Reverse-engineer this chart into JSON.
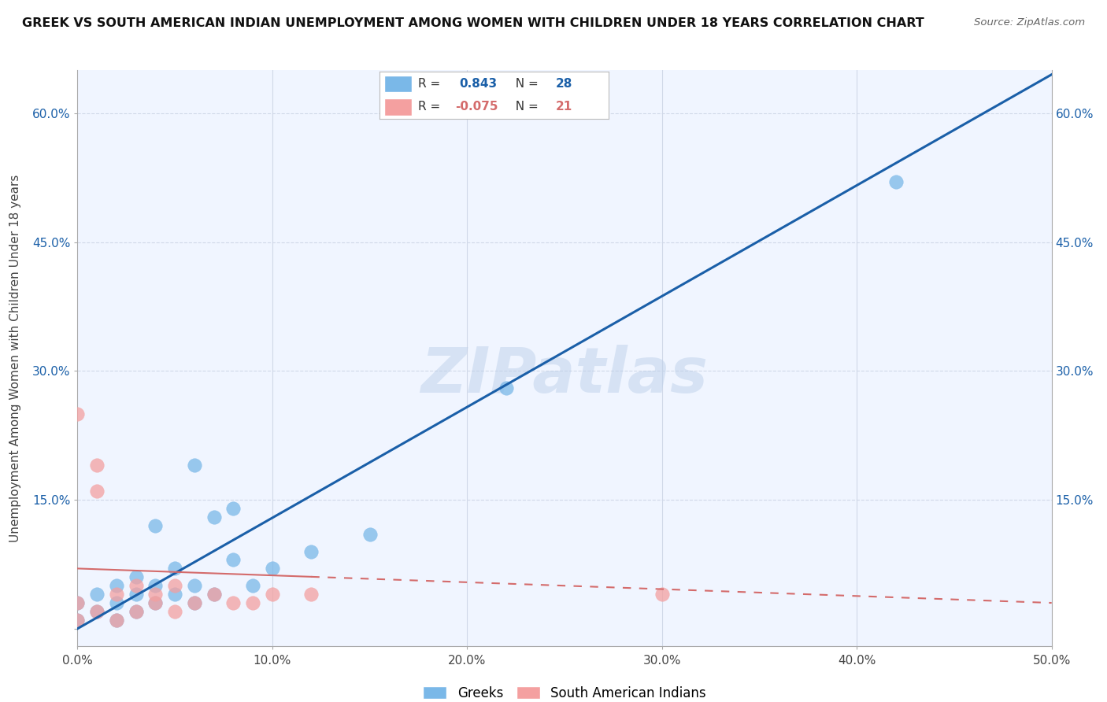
{
  "title": "GREEK VS SOUTH AMERICAN INDIAN UNEMPLOYMENT AMONG WOMEN WITH CHILDREN UNDER 18 YEARS CORRELATION CHART",
  "source": "Source: ZipAtlas.com",
  "ylabel_label": "Unemployment Among Women with Children Under 18 years",
  "xlim": [
    0,
    0.5
  ],
  "ylim": [
    -0.02,
    0.65
  ],
  "watermark": "ZIPatlas",
  "greek_R": 0.843,
  "greek_N": 28,
  "sam_indian_R": -0.075,
  "sam_indian_N": 21,
  "greek_color": "#7ab8e8",
  "sam_color": "#f4a0a0",
  "greek_line_color": "#1a5fa8",
  "sam_line_color": "#d46b6b",
  "sam_line_solid_color": "#d46b6b",
  "background_color": "#f0f5ff",
  "greek_points_x": [
    0.0,
    0.0,
    0.01,
    0.01,
    0.02,
    0.02,
    0.02,
    0.03,
    0.03,
    0.03,
    0.04,
    0.04,
    0.04,
    0.05,
    0.05,
    0.06,
    0.06,
    0.06,
    0.07,
    0.07,
    0.08,
    0.08,
    0.09,
    0.1,
    0.12,
    0.15,
    0.22,
    0.42
  ],
  "greek_points_y": [
    0.01,
    0.03,
    0.02,
    0.04,
    0.01,
    0.03,
    0.05,
    0.02,
    0.04,
    0.06,
    0.03,
    0.05,
    0.12,
    0.04,
    0.07,
    0.03,
    0.05,
    0.19,
    0.04,
    0.13,
    0.08,
    0.14,
    0.05,
    0.07,
    0.09,
    0.11,
    0.28,
    0.52
  ],
  "sam_points_x": [
    0.0,
    0.0,
    0.0,
    0.01,
    0.01,
    0.01,
    0.02,
    0.02,
    0.03,
    0.03,
    0.04,
    0.04,
    0.05,
    0.05,
    0.06,
    0.07,
    0.08,
    0.09,
    0.1,
    0.12,
    0.3
  ],
  "sam_points_y": [
    0.01,
    0.03,
    0.25,
    0.02,
    0.16,
    0.19,
    0.01,
    0.04,
    0.02,
    0.05,
    0.03,
    0.04,
    0.02,
    0.05,
    0.03,
    0.04,
    0.03,
    0.03,
    0.04,
    0.04,
    0.04
  ],
  "greek_regline_x": [
    0.0,
    0.5
  ],
  "greek_regline_y": [
    0.0,
    0.645
  ],
  "sam_regline_x": [
    0.0,
    0.5
  ],
  "sam_regline_y": [
    0.07,
    0.03
  ]
}
